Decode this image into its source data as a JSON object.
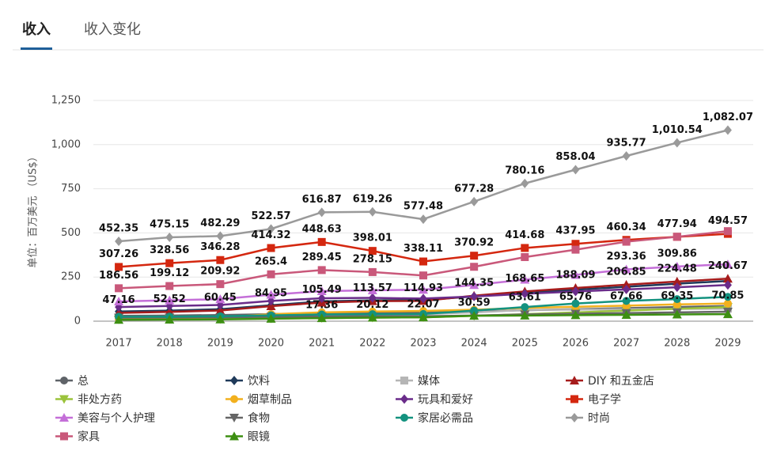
{
  "tabs": [
    "收入",
    "收入变化"
  ],
  "chart_data": {
    "type": "line",
    "y_label": "单位：百万美元 （US$）",
    "categories": [
      "2017",
      "2018",
      "2019",
      "2020",
      "2021",
      "2022",
      "2023",
      "2024",
      "2025",
      "2026",
      "2027",
      "2028",
      "2029"
    ],
    "ylim": [
      0,
      1250
    ],
    "yticks": [
      0,
      250,
      500,
      750,
      {
        "value": 1000,
        "label": "1,000"
      },
      {
        "value": 1250,
        "label": "1,250"
      }
    ],
    "grid": true,
    "series": [
      {
        "name": "总",
        "color": "#5f6368",
        "marker": "circle",
        "values": [
          30,
          32,
          35,
          40,
          45,
          47,
          48,
          55,
          62,
          68,
          74,
          80,
          86
        ]
      },
      {
        "name": "饮料",
        "color": "#1f3a5a",
        "marker": "diamond",
        "values": [
          55,
          60,
          68,
          90,
          112,
          118,
          120,
          140,
          160,
          178,
          195,
          212,
          228
        ]
      },
      {
        "name": "媒体",
        "color": "#b5b5b5",
        "marker": "square",
        "values": [
          10,
          11,
          12,
          20,
          30,
          35,
          40,
          50,
          63.61,
          65.76,
          67.66,
          69.35,
          70.85
        ],
        "value_labels": [
          null,
          null,
          null,
          null,
          null,
          null,
          null,
          null,
          "63.61",
          "65.76",
          "67.66",
          "69.35",
          "70.85"
        ]
      },
      {
        "name": "DIY 和五金店",
        "color": "#a61c1c",
        "marker": "triangle",
        "values": [
          47.16,
          52.52,
          60.45,
          84.95,
          105.49,
          113.57,
          114.93,
          144.35,
          168.65,
          188.09,
          206.85,
          224.48,
          240.67
        ],
        "value_labels": [
          "47.16",
          "52.52",
          "60.45",
          "84.95",
          "105.49",
          "113.57",
          "114.93",
          "144.35",
          "168.65",
          "188.09",
          "206.85",
          "224.48",
          "240.67"
        ]
      },
      {
        "name": "非处方药",
        "color": "#9bc33c",
        "marker": "triangle-down",
        "values": [
          10,
          11,
          12,
          15,
          18,
          20,
          22,
          30,
          40,
          50,
          60,
          70,
          80
        ]
      },
      {
        "name": "烟草制品",
        "color": "#f2b01e",
        "marker": "circle",
        "values": [
          15,
          17,
          20,
          40,
          50,
          55,
          58,
          65,
          75,
          82,
          88,
          95,
          100
        ]
      },
      {
        "name": "玩具和爱好",
        "color": "#6a2c8a",
        "marker": "diamond",
        "values": [
          80,
          86,
          92,
          115,
          130,
          132,
          128,
          140,
          155,
          168,
          180,
          192,
          205
        ]
      },
      {
        "name": "电子学",
        "color": "#d4270f",
        "marker": "square",
        "values": [
          307.26,
          328.56,
          346.28,
          414.32,
          448.63,
          398.01,
          338.11,
          370.92,
          414.68,
          437.95,
          460.34,
          477.94,
          494.57
        ],
        "value_labels": [
          "307.26",
          "328.56",
          "346.28",
          "414.32",
          "448.63",
          "398.01",
          "338.11",
          "370.92",
          "414.68",
          "437.95",
          "460.34",
          "477.94",
          "494.57"
        ]
      },
      {
        "name": "美容与个人护理",
        "color": "#c46fd8",
        "marker": "triangle",
        "values": [
          112,
          118,
          125,
          150,
          170,
          175,
          178,
          205,
          235,
          262,
          293.36,
          309.86,
          322
        ],
        "value_labels": [
          null,
          null,
          null,
          null,
          null,
          null,
          null,
          null,
          null,
          null,
          "293.36",
          "309.86",
          null
        ]
      },
      {
        "name": "食物",
        "color": "#666666",
        "marker": "triangle-down",
        "values": [
          20,
          21,
          22,
          25,
          27,
          28,
          28,
          32,
          38,
          42,
          46,
          50,
          54
        ]
      },
      {
        "name": "家居必需品",
        "color": "#13927f",
        "marker": "circle",
        "values": [
          25,
          26,
          28,
          33,
          38,
          40,
          41,
          60,
          80,
          100,
          115,
          125,
          138
        ]
      },
      {
        "name": "时尚",
        "color": "#9a9a9a",
        "marker": "diamond",
        "values": [
          452.35,
          475.15,
          482.29,
          522.57,
          616.87,
          619.26,
          577.48,
          677.28,
          780.16,
          858.04,
          935.77,
          1010.54,
          1082.07
        ],
        "value_labels": [
          "452.35",
          "475.15",
          "482.29",
          "522.57",
          "616.87",
          "619.26",
          "577.48",
          "677.28",
          "780.16",
          "858.04",
          "935.77",
          "1,010.54",
          "1,082.07"
        ]
      },
      {
        "name": "家具",
        "color": "#c9587a",
        "marker": "square",
        "values": [
          186.56,
          199.12,
          209.92,
          265.4,
          289.45,
          278.15,
          259,
          308,
          363,
          405,
          450,
          478,
          510
        ],
        "value_labels": [
          "186.56",
          "199.12",
          "209.92",
          "265.4",
          "289.45",
          "278.15",
          null,
          null,
          null,
          null,
          null,
          null,
          null
        ]
      },
      {
        "name": "眼镜",
        "color": "#3d8f12",
        "marker": "triangle",
        "values": [
          8,
          9,
          10,
          14,
          17.36,
          20.12,
          22.07,
          30.59,
          32,
          34,
          36,
          38,
          40
        ],
        "value_labels": [
          null,
          null,
          null,
          null,
          "17.36",
          "20.12",
          "22.07",
          "30.59",
          null,
          null,
          null,
          null,
          null
        ]
      }
    ]
  }
}
